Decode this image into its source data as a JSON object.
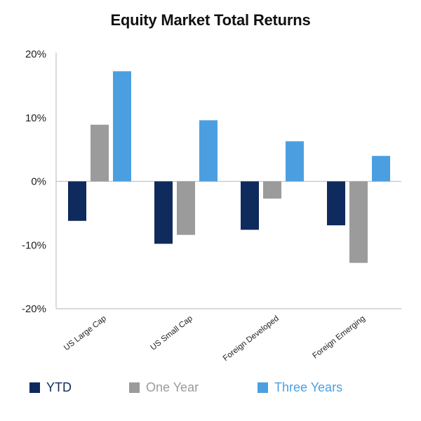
{
  "chart_data": {
    "type": "bar",
    "title": "Equity Market Total Returns",
    "categories": [
      "US Large Cap",
      "US Small Cap",
      "Foreign Developed",
      "Foreign Emerging"
    ],
    "series": [
      {
        "name": "YTD",
        "color": "#0f2a5c",
        "values": [
          -6.2,
          -9.8,
          -7.6,
          -6.9
        ]
      },
      {
        "name": "One Year",
        "color": "#9b9b9b",
        "values": [
          8.9,
          -8.4,
          -2.7,
          -12.8
        ]
      },
      {
        "name": "Three Years",
        "color": "#4b9fe1",
        "values": [
          17.3,
          9.6,
          6.3,
          4.0
        ]
      }
    ],
    "ylim": [
      -20,
      20
    ],
    "yticks": [
      {
        "value": 20,
        "label": "20%"
      },
      {
        "value": 10,
        "label": "10%"
      },
      {
        "value": 0,
        "label": "0%"
      },
      {
        "value": -10,
        "label": "-10%"
      },
      {
        "value": -20,
        "label": "-20%"
      }
    ],
    "xlabel": "",
    "ylabel": "",
    "grid": false,
    "legend_position": "bottom"
  }
}
